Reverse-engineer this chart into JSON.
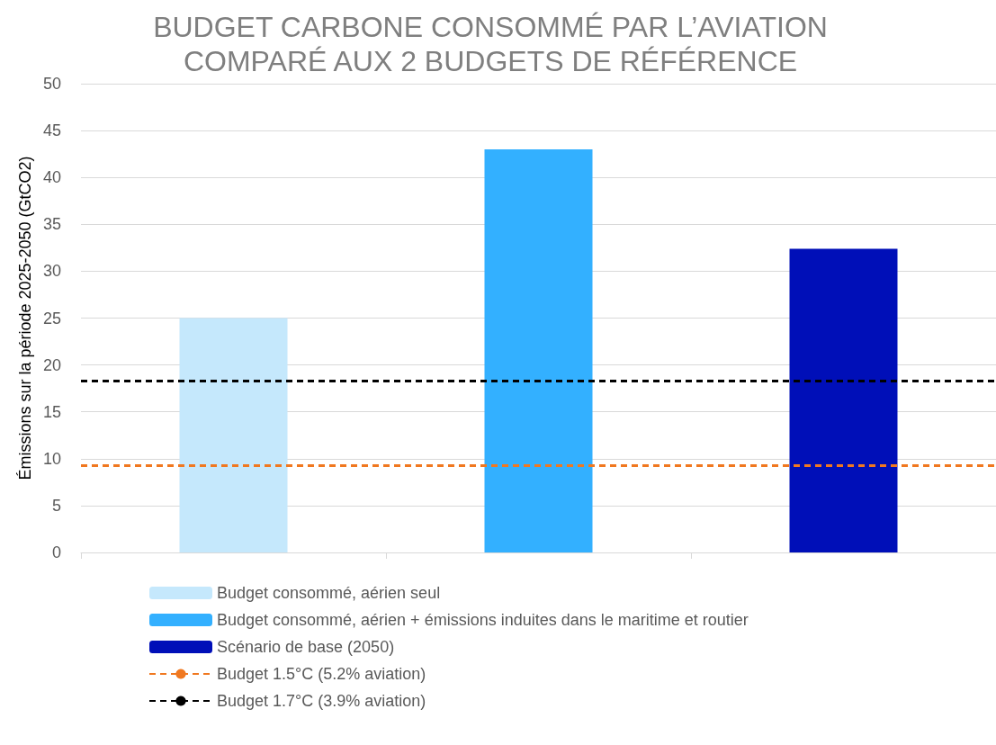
{
  "chart_data": {
    "type": "bar",
    "title": "BUDGET CARBONE CONSOMMÉ PAR L’AVIATION\nCOMPARÉ AUX 2 BUDGETS DE RÉFÉRENCE",
    "ylabel": "Émissions sur la période 2025-2050 (GtCO2)",
    "categories": [
      null,
      null,
      null
    ],
    "series": [
      {
        "name": "Budget consommé, aérien seul",
        "color": "#c5e8fc",
        "values": [
          25,
          null,
          null
        ]
      },
      {
        "name": "Budget consommé, aérien + émissions induites dans le maritime et routier",
        "color": "#33b0ff",
        "values": [
          null,
          43,
          null
        ]
      },
      {
        "name": "Scénario de base (2050)",
        "color": "#000fb8",
        "values": [
          null,
          null,
          32.4
        ]
      }
    ],
    "ref_lines": [
      {
        "axis": "y",
        "value": 9.3,
        "label": "Budget 1.5°C (5.2% aviation)",
        "color": "#f07820",
        "line_style": "dashed"
      },
      {
        "axis": "y",
        "value": 18.3,
        "label": "Budget 1.7°C (3.9% aviation)",
        "color": "#000000",
        "line_style": "dashed"
      }
    ],
    "ylim": [
      0,
      50
    ],
    "yticks": [
      0,
      5,
      10,
      15,
      20,
      25,
      30,
      35,
      40,
      45,
      50
    ],
    "grid": "y",
    "legend": "bottom"
  }
}
